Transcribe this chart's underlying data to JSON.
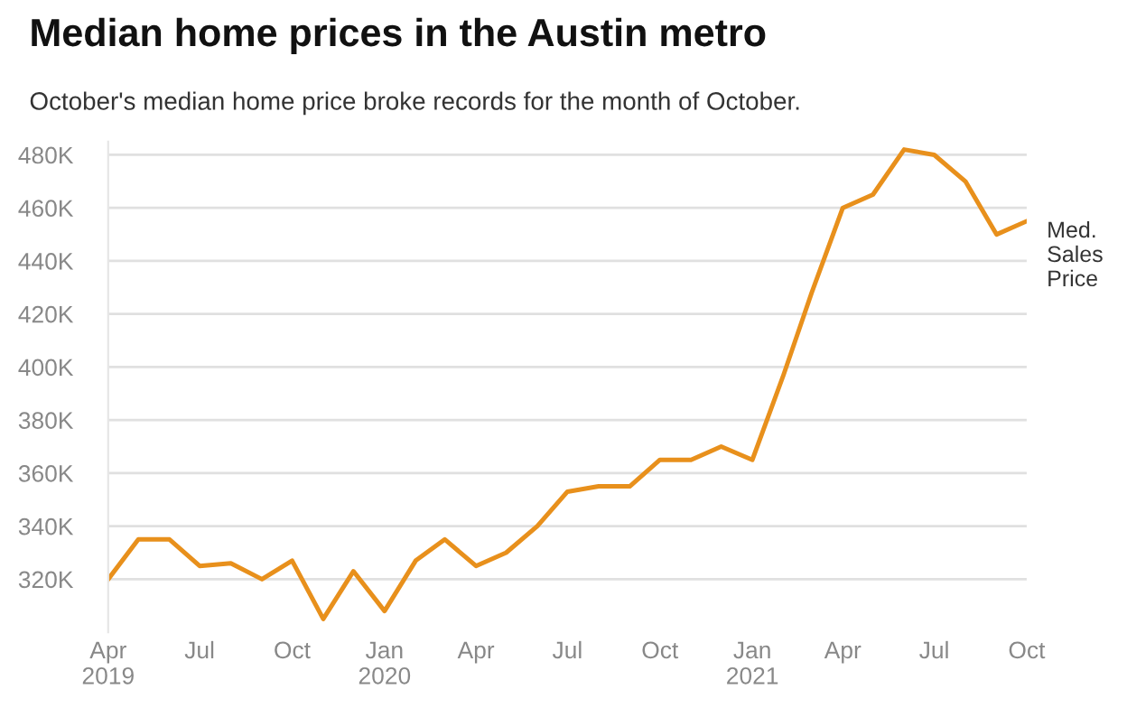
{
  "chart_data": {
    "type": "line",
    "title": "Median home prices in the Austin metro",
    "subtitle": "October's median home price broke records for the month of October.",
    "x": [
      "2019-04",
      "2019-05",
      "2019-06",
      "2019-07",
      "2019-08",
      "2019-09",
      "2019-10",
      "2019-11",
      "2019-12",
      "2020-01",
      "2020-02",
      "2020-03",
      "2020-04",
      "2020-05",
      "2020-06",
      "2020-07",
      "2020-08",
      "2020-09",
      "2020-10",
      "2020-11",
      "2020-12",
      "2021-01",
      "2021-02",
      "2021-03",
      "2021-04",
      "2021-05",
      "2021-06",
      "2021-07",
      "2021-08",
      "2021-09",
      "2021-10"
    ],
    "series": [
      {
        "name": "Med. Sales Price",
        "color": "#e8901c",
        "values": [
          320,
          335,
          335,
          325,
          326,
          320,
          327,
          305,
          323,
          308,
          327,
          335,
          325,
          330,
          340,
          353,
          355,
          355,
          365,
          365,
          370,
          365,
          397,
          428,
          460,
          465,
          482,
          480,
          470,
          450,
          455
        ]
      }
    ],
    "xlim": [
      "2019-04",
      "2021-10"
    ],
    "xticks": [
      {
        "value": "2019-04",
        "label": "Apr\n2019"
      },
      {
        "value": "2019-07",
        "label": "Jul"
      },
      {
        "value": "2019-10",
        "label": "Oct"
      },
      {
        "value": "2020-01",
        "label": "Jan\n2020"
      },
      {
        "value": "2020-04",
        "label": "Apr"
      },
      {
        "value": "2020-07",
        "label": "Jul"
      },
      {
        "value": "2020-10",
        "label": "Oct"
      },
      {
        "value": "2021-01",
        "label": "Jan\n2021"
      },
      {
        "value": "2021-04",
        "label": "Apr"
      },
      {
        "value": "2021-07",
        "label": "Jul"
      },
      {
        "value": "2021-10",
        "label": "Oct"
      }
    ],
    "ylim": [
      300,
      485
    ],
    "yticks": [
      {
        "value": 320,
        "label": "320K"
      },
      {
        "value": 340,
        "label": "340K"
      },
      {
        "value": 360,
        "label": "360K"
      },
      {
        "value": 380,
        "label": "380K"
      },
      {
        "value": 400,
        "label": "400K"
      },
      {
        "value": 420,
        "label": "420K"
      },
      {
        "value": 440,
        "label": "440K"
      },
      {
        "value": 460,
        "label": "460K"
      },
      {
        "value": 480,
        "label": "480K"
      }
    ],
    "grid": "y",
    "legend": false,
    "marker": "none",
    "line_style": "solid"
  }
}
